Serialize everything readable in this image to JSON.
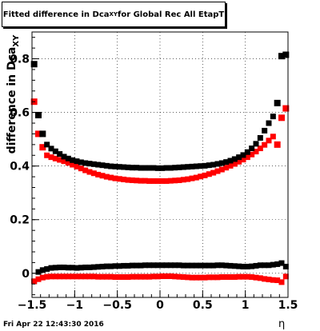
{
  "title": {
    "main": "Fitted difference in Dca",
    "sub": "XY",
    "rest": " for Global Rec All EtapT"
  },
  "ylabel": {
    "main": "difference in Dca",
    "sub": "XY"
  },
  "xlabel": "η",
  "footer": "Fri Apr 22 12:43:30 2016",
  "colors": {
    "series_black": "#000000",
    "series_red": "#ff0000"
  },
  "chart_data": {
    "type": "scatter",
    "xlim": [
      -1.5,
      1.5
    ],
    "ylim": [
      -0.09,
      0.9
    ],
    "xticks": [
      "−1.5",
      "−1",
      "−0.5",
      "0",
      "0.5",
      "1",
      "1.5"
    ],
    "xtick_values": [
      -1.5,
      -1,
      -0.5,
      0,
      0.5,
      1,
      1.5
    ],
    "yticks": [
      "0",
      "0.2",
      "0.4",
      "0.6",
      "0.8"
    ],
    "ytick_values": [
      0,
      0.2,
      0.4,
      0.6,
      0.8
    ],
    "grid": true,
    "x": [
      -1.475,
      -1.425,
      -1.375,
      -1.325,
      -1.275,
      -1.225,
      -1.175,
      -1.125,
      -1.075,
      -1.025,
      -0.975,
      -0.925,
      -0.875,
      -0.825,
      -0.775,
      -0.725,
      -0.675,
      -0.625,
      -0.575,
      -0.525,
      -0.475,
      -0.425,
      -0.375,
      -0.325,
      -0.275,
      -0.225,
      -0.175,
      -0.125,
      -0.075,
      -0.025,
      0.025,
      0.075,
      0.125,
      0.175,
      0.225,
      0.275,
      0.325,
      0.375,
      0.425,
      0.475,
      0.525,
      0.575,
      0.625,
      0.675,
      0.725,
      0.775,
      0.825,
      0.875,
      0.925,
      0.975,
      1.025,
      1.075,
      1.125,
      1.175,
      1.225,
      1.275,
      1.325,
      1.375,
      1.425,
      1.475
    ],
    "series": [
      {
        "color": "black",
        "values": [
          0.78,
          0.59,
          0.52,
          0.48,
          0.465,
          0.455,
          0.445,
          0.435,
          0.428,
          0.422,
          0.418,
          0.414,
          0.411,
          0.409,
          0.407,
          0.405,
          0.403,
          0.401,
          0.399,
          0.398,
          0.397,
          0.396,
          0.395,
          0.394,
          0.394,
          0.393,
          0.393,
          0.393,
          0.393,
          0.392,
          0.392,
          0.393,
          0.393,
          0.394,
          0.395,
          0.396,
          0.397,
          0.398,
          0.399,
          0.4,
          0.401,
          0.403,
          0.405,
          0.408,
          0.411,
          0.415,
          0.42,
          0.426,
          0.433,
          0.441,
          0.452,
          0.466,
          0.483,
          0.505,
          0.532,
          0.56,
          0.585,
          0.635,
          0.81,
          0.815
        ]
      },
      {
        "color": "red",
        "values": [
          0.64,
          0.52,
          0.47,
          0.44,
          0.433,
          0.428,
          0.423,
          0.418,
          0.412,
          0.405,
          0.398,
          0.391,
          0.384,
          0.378,
          0.373,
          0.368,
          0.364,
          0.36,
          0.357,
          0.354,
          0.352,
          0.35,
          0.348,
          0.347,
          0.346,
          0.345,
          0.345,
          0.344,
          0.344,
          0.344,
          0.344,
          0.344,
          0.345,
          0.346,
          0.347,
          0.349,
          0.351,
          0.354,
          0.357,
          0.361,
          0.365,
          0.37,
          0.375,
          0.381,
          0.387,
          0.394,
          0.401,
          0.408,
          0.416,
          0.424,
          0.433,
          0.443,
          0.454,
          0.466,
          0.479,
          0.495,
          0.51,
          0.48,
          0.58,
          0.615
        ]
      },
      {
        "color": "black",
        "values": [
          -0.03,
          0.005,
          0.012,
          0.016,
          0.02,
          0.021,
          0.022,
          0.022,
          0.021,
          0.021,
          0.02,
          0.021,
          0.022,
          0.022,
          0.023,
          0.024,
          0.025,
          0.026,
          0.026,
          0.027,
          0.027,
          0.028,
          0.028,
          0.029,
          0.029,
          0.029,
          0.03,
          0.03,
          0.03,
          0.03,
          0.03,
          0.03,
          0.03,
          0.03,
          0.03,
          0.029,
          0.029,
          0.029,
          0.029,
          0.029,
          0.029,
          0.029,
          0.029,
          0.03,
          0.03,
          0.029,
          0.028,
          0.027,
          0.026,
          0.025,
          0.025,
          0.026,
          0.028,
          0.03,
          0.03,
          0.03,
          0.032,
          0.034,
          0.038,
          0.025
        ]
      },
      {
        "color": "red",
        "values": [
          -0.03,
          -0.022,
          -0.016,
          -0.013,
          -0.012,
          -0.012,
          -0.012,
          -0.012,
          -0.012,
          -0.012,
          -0.012,
          -0.012,
          -0.012,
          -0.012,
          -0.012,
          -0.013,
          -0.013,
          -0.013,
          -0.013,
          -0.014,
          -0.014,
          -0.014,
          -0.014,
          -0.013,
          -0.013,
          -0.013,
          -0.013,
          -0.013,
          -0.012,
          -0.012,
          -0.011,
          -0.011,
          -0.011,
          -0.012,
          -0.013,
          -0.014,
          -0.015,
          -0.016,
          -0.016,
          -0.016,
          -0.016,
          -0.015,
          -0.015,
          -0.015,
          -0.014,
          -0.014,
          -0.014,
          -0.014,
          -0.013,
          -0.013,
          -0.013,
          -0.014,
          -0.016,
          -0.018,
          -0.021,
          -0.023,
          -0.025,
          -0.026,
          -0.033,
          -0.012
        ]
      }
    ]
  }
}
